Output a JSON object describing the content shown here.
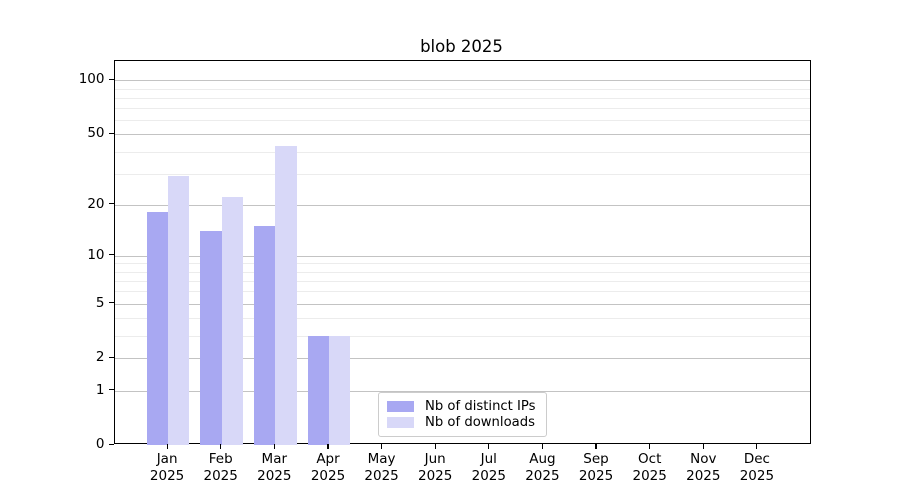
{
  "chart_data": {
    "type": "bar",
    "title": "blob 2025",
    "categories": [
      "Jan 2025",
      "Feb 2025",
      "Mar 2025",
      "Apr 2025",
      "May 2025",
      "Jun 2025",
      "Jul 2025",
      "Aug 2025",
      "Sep 2025",
      "Oct 2025",
      "Nov 2025",
      "Dec 2025"
    ],
    "series": [
      {
        "name": "Nb of distinct IPs",
        "color": "#a8a8f2",
        "values": [
          18,
          14,
          15,
          3,
          0,
          0,
          0,
          0,
          0,
          0,
          0,
          0
        ]
      },
      {
        "name": "Nb of downloads",
        "color": "#d8d8f8",
        "values": [
          29,
          22,
          43,
          3,
          0,
          0,
          0,
          0,
          0,
          0,
          0,
          0
        ]
      }
    ],
    "yscale": "log1p",
    "yticks": [
      0,
      1,
      2,
      5,
      10,
      20,
      50,
      100
    ],
    "minor_yticks": [
      3,
      4,
      6,
      7,
      8,
      9,
      30,
      40,
      60,
      70,
      80,
      90
    ],
    "ylim": [
      0,
      128
    ],
    "grid": true,
    "legend_position": "lower-center",
    "xlabel": "",
    "ylabel": ""
  },
  "style_colors": {
    "major_grid": "#c3c3c3",
    "minor_grid": "#ececec",
    "spine": "#000000"
  }
}
